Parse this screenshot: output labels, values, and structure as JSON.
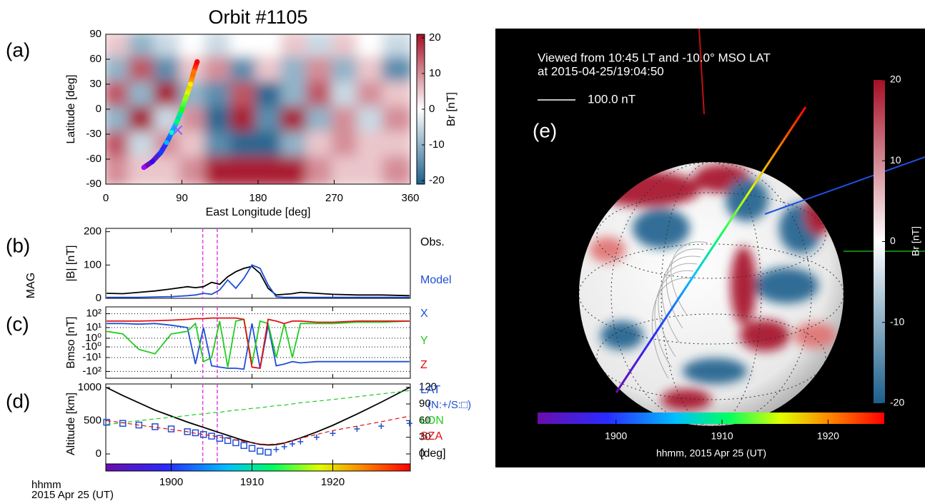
{
  "chart_data": [
    {
      "type": "heatmap",
      "panel": "(a)",
      "title": "Orbit #1105",
      "xlabel": "East Longitude [deg]",
      "ylabel": "Latitude [deg]",
      "xlim": [
        0,
        360
      ],
      "ylim": [
        -90,
        90
      ],
      "xticks": [
        0,
        90,
        180,
        270,
        360
      ],
      "yticks": [
        -90,
        -60,
        -30,
        0,
        30,
        60,
        90
      ],
      "lon": [
        15,
        45,
        75,
        105,
        135,
        165,
        195,
        225,
        255,
        285,
        315,
        345
      ],
      "lat": [
        75,
        45,
        15,
        -15,
        -45,
        -75
      ],
      "z": [
        [
          5,
          -10,
          -5,
          0,
          -5,
          0,
          0,
          5,
          -5,
          5,
          0,
          -5
        ],
        [
          -10,
          15,
          -15,
          5,
          10,
          -15,
          5,
          -10,
          10,
          -10,
          5,
          -15
        ],
        [
          15,
          -10,
          20,
          -10,
          -15,
          15,
          -20,
          -10,
          15,
          -5,
          10,
          5
        ],
        [
          -10,
          20,
          -5,
          10,
          -20,
          20,
          -15,
          20,
          -10,
          10,
          -5,
          10
        ],
        [
          15,
          -5,
          10,
          5,
          -15,
          -20,
          -20,
          -10,
          5,
          10,
          5,
          5
        ],
        [
          10,
          5,
          5,
          10,
          20,
          20,
          20,
          20,
          10,
          5,
          5,
          10
        ]
      ],
      "colorbar_label": "Br [nT]",
      "clim": [
        -21,
        21
      ],
      "cticks": [
        -20,
        -10,
        0,
        10,
        20
      ],
      "colors": [
        "#1b5f8c",
        "#ffffff",
        "#a50f26"
      ],
      "track": {
        "lon": [
          45,
          55,
          65,
          72,
          78,
          84,
          90,
          95,
          100,
          104,
          108
        ],
        "lat": [
          -70,
          -63,
          -52,
          -40,
          -28,
          -15,
          0,
          15,
          30,
          45,
          57
        ]
      },
      "cross": {
        "lon": 85,
        "lat": -25
      }
    },
    {
      "type": "line",
      "panel": "(b)",
      "side_label": "MAG",
      "ylabel": "|B| [nT]",
      "xlim": [
        1131.9,
        1169.6
      ],
      "ylim": [
        0,
        210
      ],
      "yticks": [
        0,
        100,
        200
      ],
      "x": [
        1132,
        1134,
        1136,
        1138,
        1140,
        1142,
        1143,
        1144,
        1145,
        1146,
        1147,
        1148,
        1149,
        1150,
        1151,
        1152,
        1153,
        1154,
        1155,
        1156,
        1158,
        1160,
        1163,
        1166,
        1169.5
      ],
      "series": [
        {
          "name": "Obs.",
          "color": "#000000",
          "values": [
            15,
            14,
            18,
            22,
            28,
            35,
            32,
            35,
            48,
            42,
            65,
            80,
            90,
            96,
            75,
            30,
            10,
            12,
            14,
            18,
            15,
            12,
            10,
            10,
            8
          ]
        },
        {
          "name": "Model",
          "color": "#1f4fd6",
          "values": [
            3,
            3,
            3,
            4,
            5,
            8,
            10,
            15,
            12,
            25,
            55,
            30,
            60,
            100,
            90,
            40,
            5,
            3,
            3,
            3,
            3,
            3,
            3,
            3,
            3
          ]
        }
      ],
      "vlines": [
        1143.9,
        1145.7
      ],
      "vline_color": "#e040e0"
    },
    {
      "type": "line",
      "panel": "(c)",
      "ylabel": "Bmso [nT]",
      "scale": "symlog",
      "grid": true,
      "xlim": [
        1131.9,
        1169.6
      ],
      "ylim": [
        -300,
        300
      ],
      "yticks": [
        {
          "value": 100,
          "label": "10²"
        },
        {
          "value": 10,
          "label": "10¹"
        },
        {
          "value": 1,
          "label": "10⁰"
        },
        {
          "value": -1,
          "label": "-10⁰"
        },
        {
          "value": -10,
          "label": "-10¹"
        },
        {
          "value": -100,
          "label": "-10²"
        }
      ],
      "x": [
        1132,
        1134,
        1136,
        1138,
        1140,
        1142,
        1143,
        1144,
        1145,
        1146,
        1147,
        1148,
        1149,
        1150,
        1151,
        1152,
        1153,
        1154,
        1155,
        1156,
        1158,
        1160,
        1163,
        1166,
        1169.5
      ],
      "series": [
        {
          "name": "X",
          "color": "#1f4fd6",
          "values": [
            20,
            20,
            18,
            20,
            15,
            10,
            -30,
            10,
            -40,
            -50,
            -60,
            -60,
            -70,
            20,
            -60,
            15,
            -40,
            -30,
            -20,
            -25,
            -20,
            -20,
            -20,
            -20,
            -20
          ]
        },
        {
          "name": "Y",
          "color": "#22cc22",
          "values": [
            5,
            3,
            -2,
            -5,
            3,
            5,
            20,
            -20,
            -10,
            30,
            -50,
            30,
            40,
            -30,
            30,
            20,
            -10,
            20,
            -10,
            20,
            20,
            20,
            25,
            25,
            30
          ]
        },
        {
          "name": "Z",
          "color": "#e01010",
          "values": [
            30,
            30,
            30,
            32,
            35,
            40,
            45,
            45,
            50,
            50,
            50,
            50,
            40,
            -50,
            -60,
            40,
            30,
            20,
            30,
            30,
            25,
            25,
            30,
            30,
            30
          ]
        }
      ],
      "vlines": [
        1143.9,
        1145.7
      ],
      "vline_color": "#e040e0"
    },
    {
      "type": "line",
      "panel": "(d)",
      "ylabel": "Altitude [km]",
      "xlim": [
        1131.9,
        1169.6
      ],
      "ylim": [
        -150,
        1054
      ],
      "yticks": [
        0,
        500,
        1000
      ],
      "y2lim": [
        -18,
        126
      ],
      "y2ticks": [
        0,
        30,
        60,
        90,
        120
      ],
      "y2label": "[deg]",
      "x": [
        1132,
        1134,
        1136,
        1138,
        1140,
        1142,
        1143,
        1144,
        1145,
        1146,
        1147,
        1148,
        1149,
        1150,
        1151,
        1152,
        1153,
        1154,
        1155,
        1156,
        1158,
        1160,
        1163,
        1166,
        1169.5
      ],
      "series": [
        {
          "color": "#000000",
          "values": [
            1000,
            880,
            770,
            660,
            570,
            480,
            440,
            400,
            360,
            320,
            280,
            240,
            200,
            170,
            145,
            135,
            140,
            165,
            200,
            240,
            330,
            430,
            600,
            780,
            1000
          ]
        },
        {
          "name": "LAT",
          "note": "(N:+/S:□)",
          "color": "#1f4fd6",
          "axis": "y2",
          "values": [
            57,
            55,
            52,
            49,
            45,
            40,
            38,
            35,
            32,
            28,
            24,
            20,
            15,
            10,
            5,
            3,
            8,
            13,
            18,
            22,
            30,
            37,
            45,
            50,
            55
          ],
          "markers": [
            "square",
            "square",
            "square",
            "square",
            "square",
            "square",
            "square",
            "square",
            "square",
            "square",
            "square",
            "square",
            "square",
            "square",
            "square",
            "square",
            "plus",
            "plus",
            "plus",
            "plus",
            "plus",
            "plus",
            "plus",
            "plus",
            "plus"
          ]
        },
        {
          "name": "LON",
          "color": "#22cc22",
          "axis": "y2",
          "dash": true,
          "values": [
            53,
            56,
            60,
            63,
            66,
            69,
            71,
            72,
            74,
            75,
            77,
            79,
            80,
            82,
            83,
            85,
            87,
            88,
            90,
            92,
            95,
            98,
            103,
            108,
            114
          ]
        },
        {
          "name": "SZA",
          "color": "#e01010",
          "axis": "y2",
          "dash": true,
          "values": [
            60,
            56,
            52,
            48,
            44,
            40,
            37,
            35,
            33,
            30,
            28,
            25,
            22,
            20,
            18,
            17,
            18,
            20,
            24,
            28,
            35,
            42,
            50,
            58,
            68
          ]
        }
      ],
      "vlines": [
        1143.9,
        1145.7
      ],
      "vline_color": "#e040e0"
    },
    {
      "type": "colorbar",
      "xlabel": "hhmm",
      "subtitle": "2015 Apr 25 (UT)",
      "xlim": [
        1131.9,
        1169.6
      ],
      "xticks": [
        {
          "value": 1140,
          "label": "1900"
        },
        {
          "value": 1150,
          "label": "1910"
        },
        {
          "value": 1160,
          "label": "1920"
        }
      ]
    },
    {
      "type": "globe",
      "panel": "(e)",
      "title": "Viewed from 10:45 LT and -10.0° MSO LAT",
      "subtitle": "at 2015-04-25/19:04:50",
      "scale_label": "100.0 nT",
      "colorbar_label": "Br [nT]",
      "clim": [
        -20,
        20
      ],
      "cticks": [
        20,
        10,
        0,
        -10,
        -20
      ],
      "time_xlim": [
        1132.6,
        1165.3
      ],
      "time_xticks": [
        {
          "value": 1140,
          "label": "1900"
        },
        {
          "value": 1150,
          "label": "1910"
        },
        {
          "value": 1160,
          "label": "1920"
        }
      ],
      "time_label": "hhmm, 2015 Apr 25 (UT)"
    }
  ]
}
